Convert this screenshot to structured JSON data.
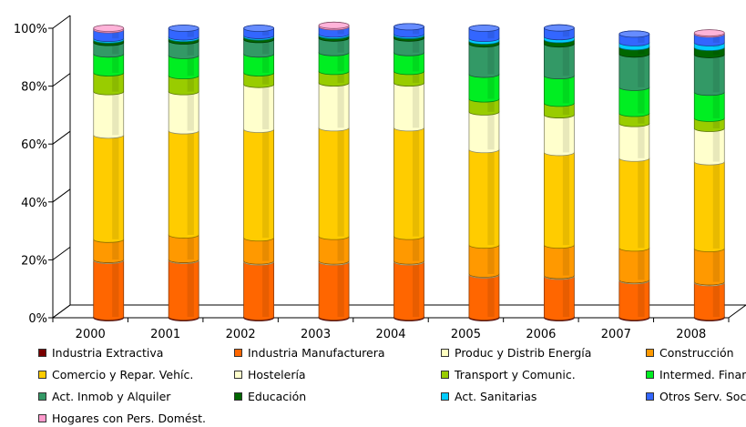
{
  "chart_data": {
    "type": "bar",
    "stacked": true,
    "categories": [
      "2000",
      "2001",
      "2002",
      "2003",
      "2004",
      "2005",
      "2006",
      "2007",
      "2008"
    ],
    "y_ticks": [
      "0%",
      "20%",
      "40%",
      "60%",
      "80%",
      "100%"
    ],
    "ylim": [
      0,
      100
    ],
    "legend_position": "bottom",
    "series": [
      {
        "name": "Industria Extractiva",
        "color": "#7a0000",
        "values": [
          0.3,
          0.3,
          0.3,
          0.3,
          0.3,
          0.3,
          0.3,
          0.3,
          0.3
        ]
      },
      {
        "name": "Industria Manufacturera",
        "color": "#ff6600",
        "values": [
          19.5,
          19.5,
          19.0,
          19.0,
          19.0,
          14.5,
          14.0,
          12.5,
          11.8
        ]
      },
      {
        "name": "Produc y Distrib Energía",
        "color": "#ffffc0",
        "values": [
          0.3,
          0.3,
          0.3,
          0.3,
          0.3,
          0.3,
          0.3,
          0.3,
          0.3
        ]
      },
      {
        "name": "Construcción",
        "color": "#ff9900",
        "values": [
          7.0,
          8.5,
          8.0,
          8.5,
          8.5,
          10.0,
          10.5,
          11.0,
          11.5
        ]
      },
      {
        "name": "Comercio y Repar. Vehíc.",
        "color": "#ffcc00",
        "values": [
          36.0,
          36.0,
          37.5,
          37.5,
          37.5,
          33.0,
          32.0,
          31.0,
          30.0
        ]
      },
      {
        "name": "Hostelería",
        "color": "#ffffcc",
        "values": [
          15.0,
          13.5,
          15.5,
          15.5,
          15.5,
          13.0,
          13.0,
          12.0,
          11.5
        ]
      },
      {
        "name": "Transport y Comunic.",
        "color": "#99cc00",
        "values": [
          6.5,
          5.5,
          4.0,
          4.0,
          4.0,
          4.5,
          4.0,
          3.5,
          3.5
        ]
      },
      {
        "name": "Intermed. Financ",
        "color": "#00ee22",
        "values": [
          6.5,
          7.0,
          6.5,
          6.5,
          6.5,
          8.5,
          9.5,
          9.0,
          9.0
        ]
      },
      {
        "name": "Act. Inmob y Alquiler",
        "color": "#339966",
        "values": [
          4.0,
          5.0,
          5.0,
          5.0,
          5.0,
          10.5,
          11.0,
          11.5,
          13.0
        ]
      },
      {
        "name": "Educación",
        "color": "#006600",
        "values": [
          0.9,
          0.9,
          0.9,
          0.9,
          0.9,
          1.0,
          1.5,
          2.5,
          2.5
        ]
      },
      {
        "name": "Act. Sanitarias",
        "color": "#00ccff",
        "values": [
          0.5,
          0.5,
          0.5,
          0.5,
          0.5,
          0.9,
          1.0,
          1.4,
          1.6
        ]
      },
      {
        "name": "Otros Serv. Soc.",
        "color": "#3366ff",
        "values": [
          3.0,
          3.0,
          2.5,
          2.5,
          2.5,
          3.5,
          3.0,
          3.0,
          3.0
        ]
      },
      {
        "name": "Hogares con Pers. Domést.",
        "color": "#ff99cc",
        "values": [
          0.5,
          0.0,
          0.0,
          0.5,
          0.0,
          0.0,
          0.0,
          0.0,
          0.4
        ]
      }
    ]
  }
}
